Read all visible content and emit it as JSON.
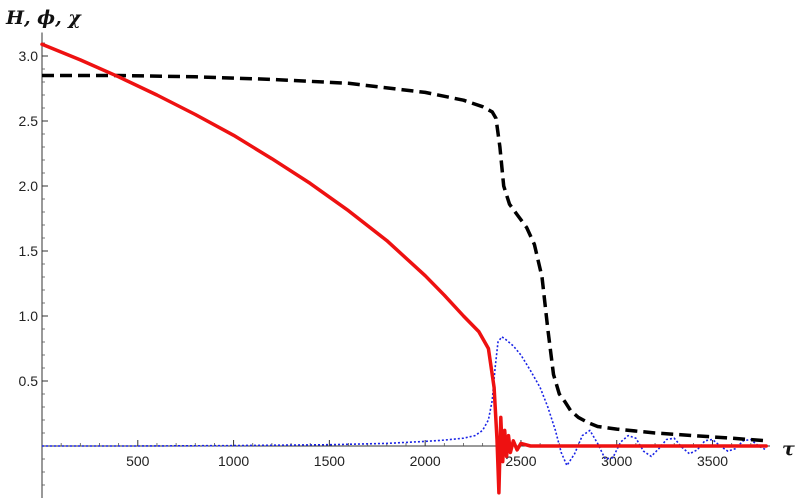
{
  "chart_data": {
    "type": "line",
    "title": "",
    "xlabel": "τ",
    "ylabel": "H, ϕ, χ",
    "xlim": [
      0,
      3800
    ],
    "ylim": [
      -0.4,
      3.15
    ],
    "x_ticks": [
      500,
      1000,
      1500,
      2000,
      2500,
      3000,
      3500
    ],
    "x_tick_labels": [
      "500",
      "1000",
      "1500",
      "2000",
      "2500",
      "3000",
      "3500"
    ],
    "y_ticks": [
      0.5,
      1.0,
      1.5,
      2.0,
      2.5,
      3.0
    ],
    "y_tick_labels": [
      "0.5",
      "1.0",
      "1.5",
      "2.0",
      "2.5",
      "3.0"
    ],
    "grid": false,
    "legend": "none",
    "series": [
      {
        "style": "solid",
        "color": "#ee1111",
        "x": [
          0,
          200,
          400,
          600,
          800,
          1000,
          1200,
          1400,
          1600,
          1800,
          2000,
          2100,
          2200,
          2280,
          2330,
          2360,
          2375,
          2385,
          2395,
          2405,
          2415,
          2425,
          2435,
          2445,
          2460,
          2480,
          2500,
          2550,
          2600,
          2800,
          3000,
          3200,
          3400,
          3600,
          3780
        ],
        "y": [
          3.09,
          2.97,
          2.84,
          2.7,
          2.55,
          2.39,
          2.21,
          2.02,
          1.81,
          1.58,
          1.31,
          1.16,
          1.0,
          0.88,
          0.75,
          0.45,
          0.05,
          -0.36,
          0.22,
          -0.12,
          0.12,
          -0.08,
          0.08,
          -0.05,
          0.04,
          -0.03,
          0.02,
          0.0,
          0.0,
          0.0,
          0.0,
          0.0,
          0.0,
          0.0,
          0.0
        ]
      },
      {
        "style": "dashed",
        "color": "#000000",
        "x": [
          0,
          400,
          800,
          1200,
          1600,
          2000,
          2200,
          2300,
          2350,
          2370,
          2390,
          2410,
          2440,
          2480,
          2530,
          2570,
          2610,
          2640,
          2670,
          2700,
          2730,
          2760,
          2800,
          2850,
          2900,
          3000,
          3200,
          3400,
          3600,
          3780
        ],
        "y": [
          2.85,
          2.85,
          2.84,
          2.82,
          2.79,
          2.72,
          2.66,
          2.61,
          2.57,
          2.52,
          2.3,
          2.0,
          1.86,
          1.78,
          1.68,
          1.55,
          1.3,
          0.9,
          0.55,
          0.4,
          0.34,
          0.27,
          0.22,
          0.18,
          0.15,
          0.13,
          0.1,
          0.08,
          0.06,
          0.04
        ]
      },
      {
        "style": "dotted",
        "color": "#1a24e6",
        "x": [
          0,
          500,
          1000,
          1500,
          1800,
          2000,
          2100,
          2200,
          2260,
          2300,
          2330,
          2350,
          2365,
          2380,
          2400,
          2420,
          2460,
          2500,
          2550,
          2600,
          2640,
          2680,
          2710,
          2740,
          2780,
          2820,
          2860,
          2900,
          2940,
          2980,
          3020,
          3060,
          3100,
          3140,
          3180,
          3220,
          3260,
          3300,
          3340,
          3380,
          3420,
          3460,
          3500,
          3540,
          3580,
          3620,
          3660,
          3700,
          3740,
          3780
        ],
        "y": [
          0.0,
          0.0,
          0.003,
          0.01,
          0.02,
          0.035,
          0.045,
          0.06,
          0.08,
          0.12,
          0.2,
          0.35,
          0.6,
          0.8,
          0.84,
          0.82,
          0.77,
          0.7,
          0.58,
          0.45,
          0.3,
          0.12,
          -0.05,
          -0.15,
          -0.06,
          0.08,
          0.12,
          0.02,
          -0.1,
          -0.09,
          0.03,
          0.08,
          0.06,
          -0.04,
          -0.08,
          -0.02,
          0.05,
          0.06,
          -0.01,
          -0.06,
          -0.03,
          0.04,
          0.05,
          0.0,
          -0.04,
          -0.02,
          0.04,
          0.05,
          0.0,
          -0.03
        ]
      }
    ]
  }
}
